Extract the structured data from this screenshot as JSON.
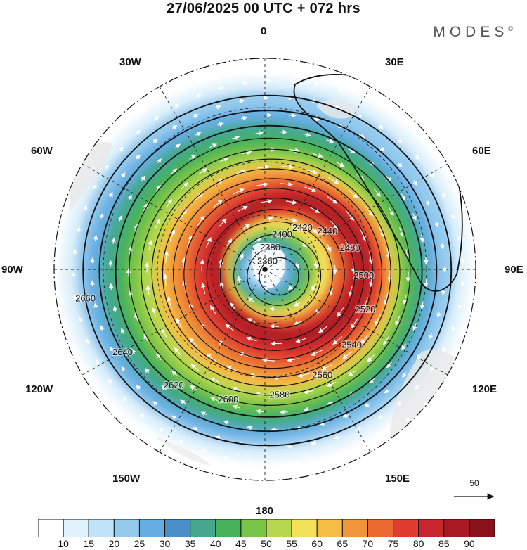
{
  "title": "27/06/2025  00 UTC  + 072 hrs",
  "brand": "MODES",
  "brand_mark": "©",
  "longitude_labels": [
    "0",
    "30E",
    "60E",
    "90E",
    "120E",
    "150E",
    "180",
    "150W",
    "120W",
    "90W",
    "60W",
    "30W"
  ],
  "contour_labels": [
    "2360",
    "2380",
    "2400",
    "2420",
    "2440",
    "2480",
    "2500",
    "2520",
    "2540",
    "2560",
    "2580",
    "2600",
    "2620",
    "2640",
    "2660"
  ],
  "vector_reference": "50",
  "colorbar": {
    "labels": [
      "10",
      "15",
      "20",
      "25",
      "30",
      "35",
      "40",
      "45",
      "50",
      "55",
      "60",
      "65",
      "70",
      "75",
      "80",
      "85",
      "90"
    ],
    "colors": [
      "#ffffff",
      "#e0f2fc",
      "#bfe3f8",
      "#94caee",
      "#66aee2",
      "#4a8fc9",
      "#45a88e",
      "#46b25a",
      "#78c448",
      "#b6d84e",
      "#f3e15a",
      "#f6bd46",
      "#f09638",
      "#ea6a32",
      "#df3d30",
      "#c8262b",
      "#a81a22",
      "#8a121a"
    ]
  }
}
